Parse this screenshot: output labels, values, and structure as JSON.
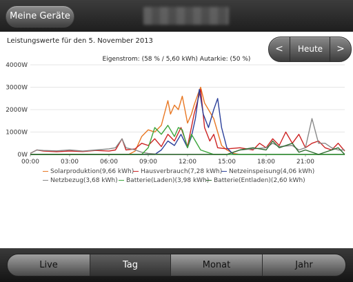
{
  "header": {
    "back_label": "Meine Geräte"
  },
  "caption": "Leistungswerte für den 5. November 2013",
  "nav": {
    "prev": "<",
    "today": "Heute",
    "next": ">"
  },
  "chart_data": {
    "type": "line",
    "title": "Eigenstrom: (58 % / 5,60 kWh) Autarkie: (50 %)",
    "ylim": [
      0,
      4000
    ],
    "y_ticks": [
      "4000W",
      "3000W",
      "2000W",
      "1000W",
      "0W"
    ],
    "x_ticks": [
      "00:00",
      "03:00",
      "06:00",
      "09:00",
      "12:00",
      "15:00",
      "18:00",
      "21:00"
    ],
    "x_unit": "hours",
    "legend_placement": "bottom",
    "series": [
      {
        "name": "Solarproduktion(9,66 kWh)",
        "color": "#e87722",
        "points": [
          [
            0,
            0
          ],
          [
            7.5,
            0
          ],
          [
            8,
            150
          ],
          [
            8.5,
            800
          ],
          [
            9,
            1100
          ],
          [
            9.5,
            1000
          ],
          [
            10,
            1300
          ],
          [
            10.5,
            2400
          ],
          [
            10.7,
            1800
          ],
          [
            11,
            2200
          ],
          [
            11.3,
            2000
          ],
          [
            11.6,
            2600
          ],
          [
            12,
            1400
          ],
          [
            12.3,
            1800
          ],
          [
            12.5,
            2200
          ],
          [
            12.8,
            2700
          ],
          [
            13,
            3000
          ],
          [
            13.3,
            2300
          ],
          [
            13.6,
            2000
          ],
          [
            14,
            1600
          ],
          [
            14.3,
            1000
          ],
          [
            14.6,
            400
          ],
          [
            15,
            200
          ],
          [
            15.5,
            50
          ],
          [
            16,
            0
          ],
          [
            24,
            0
          ]
        ]
      },
      {
        "name": "Hausverbrauch(7,28 kWh)",
        "color": "#cc2222",
        "points": [
          [
            0,
            50
          ],
          [
            0.5,
            200
          ],
          [
            1,
            150
          ],
          [
            2,
            120
          ],
          [
            3,
            150
          ],
          [
            4,
            130
          ],
          [
            5,
            180
          ],
          [
            6,
            150
          ],
          [
            6.5,
            200
          ],
          [
            7,
            700
          ],
          [
            7.3,
            200
          ],
          [
            8,
            250
          ],
          [
            8.5,
            500
          ],
          [
            9,
            400
          ],
          [
            9.5,
            700
          ],
          [
            10,
            350
          ],
          [
            10.5,
            900
          ],
          [
            11,
            600
          ],
          [
            11.5,
            1200
          ],
          [
            12,
            350
          ],
          [
            12.5,
            1800
          ],
          [
            13,
            2900
          ],
          [
            13.3,
            1200
          ],
          [
            13.7,
            600
          ],
          [
            14,
            900
          ],
          [
            14.3,
            300
          ],
          [
            15,
            250
          ],
          [
            16,
            300
          ],
          [
            17,
            200
          ],
          [
            17.5,
            500
          ],
          [
            18,
            300
          ],
          [
            18.5,
            700
          ],
          [
            19,
            400
          ],
          [
            19.5,
            1000
          ],
          [
            20,
            500
          ],
          [
            20.5,
            900
          ],
          [
            21,
            300
          ],
          [
            21.5,
            500
          ],
          [
            22,
            600
          ],
          [
            22.5,
            300
          ],
          [
            23,
            200
          ],
          [
            23.5,
            500
          ],
          [
            24,
            150
          ]
        ]
      },
      {
        "name": "Netzeinspeisung(4,06 kWh)",
        "color": "#2a3f9a",
        "points": [
          [
            0,
            0
          ],
          [
            9.5,
            0
          ],
          [
            10,
            200
          ],
          [
            10.5,
            600
          ],
          [
            11,
            400
          ],
          [
            11.5,
            900
          ],
          [
            12,
            300
          ],
          [
            12.3,
            800
          ],
          [
            12.6,
            1600
          ],
          [
            12.9,
            2900
          ],
          [
            13.2,
            1800
          ],
          [
            13.6,
            1200
          ],
          [
            14,
            2000
          ],
          [
            14.3,
            2500
          ],
          [
            14.6,
            1200
          ],
          [
            15,
            300
          ],
          [
            15.5,
            0
          ],
          [
            24,
            0
          ]
        ]
      },
      {
        "name": "Netzbezug(3,68 kWh)",
        "color": "#888888",
        "points": [
          [
            0,
            50
          ],
          [
            0.5,
            200
          ],
          [
            1,
            180
          ],
          [
            2,
            160
          ],
          [
            3,
            200
          ],
          [
            4,
            150
          ],
          [
            5,
            200
          ],
          [
            6,
            250
          ],
          [
            6.5,
            300
          ],
          [
            7,
            700
          ],
          [
            7.3,
            300
          ],
          [
            8,
            200
          ],
          [
            8.5,
            100
          ],
          [
            9,
            50
          ],
          [
            10,
            0
          ],
          [
            15,
            0
          ],
          [
            15.5,
            100
          ],
          [
            16,
            200
          ],
          [
            17,
            250
          ],
          [
            18,
            300
          ],
          [
            18.5,
            500
          ],
          [
            19,
            350
          ],
          [
            20,
            400
          ],
          [
            20.5,
            200
          ],
          [
            21,
            300
          ],
          [
            21.5,
            1600
          ],
          [
            22,
            500
          ],
          [
            22.5,
            500
          ],
          [
            23,
            300
          ],
          [
            23.5,
            200
          ],
          [
            24,
            200
          ]
        ]
      },
      {
        "name": "Batterie(Laden)(3,98 kWh)",
        "color": "#3aa53a",
        "points": [
          [
            0,
            0
          ],
          [
            8.5,
            0
          ],
          [
            9,
            300
          ],
          [
            9.5,
            1200
          ],
          [
            10,
            900
          ],
          [
            10.5,
            1300
          ],
          [
            11,
            800
          ],
          [
            11.3,
            1200
          ],
          [
            11.6,
            1100
          ],
          [
            12,
            300
          ],
          [
            12.3,
            900
          ],
          [
            12.6,
            600
          ],
          [
            13,
            200
          ],
          [
            13.5,
            100
          ],
          [
            14,
            0
          ],
          [
            24,
            0
          ]
        ]
      },
      {
        "name": "Batterie(Entladen)(2,60 kWh)",
        "color": "#2f6b2f",
        "points": [
          [
            0,
            0
          ],
          [
            15,
            0
          ],
          [
            15.5,
            100
          ],
          [
            16,
            200
          ],
          [
            17,
            300
          ],
          [
            18,
            200
          ],
          [
            18.5,
            600
          ],
          [
            19,
            300
          ],
          [
            20,
            500
          ],
          [
            20.5,
            100
          ],
          [
            21,
            200
          ],
          [
            22,
            0
          ],
          [
            23.5,
            300
          ],
          [
            24,
            0
          ]
        ]
      }
    ]
  },
  "tabs": [
    {
      "label": "Live",
      "active": false
    },
    {
      "label": "Tag",
      "active": true
    },
    {
      "label": "Monat",
      "active": false
    },
    {
      "label": "Jahr",
      "active": false
    }
  ]
}
